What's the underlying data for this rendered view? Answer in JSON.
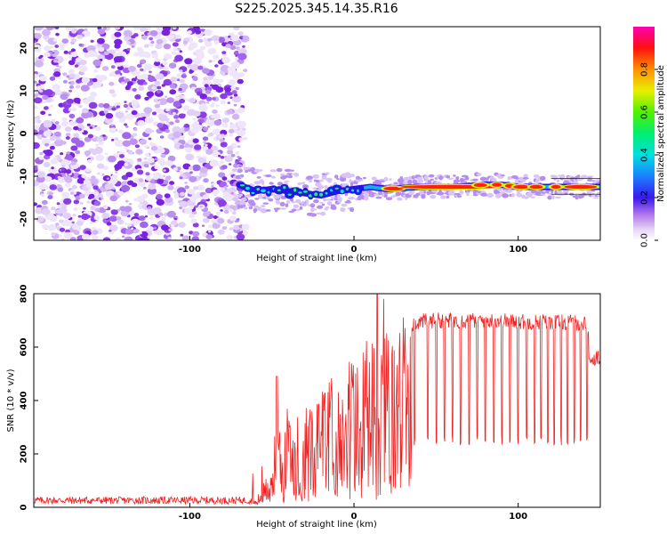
{
  "figure_title": "S225.2025.345.14.35.R16",
  "chart_data": [
    {
      "type": "heatmap",
      "name": "spectrogram",
      "xlabel": "Height of straight line (km)",
      "ylabel": "Frequency (Hz)",
      "xlim": [
        -195,
        150
      ],
      "ylim": [
        -25,
        25
      ],
      "xticks": [
        -100,
        0,
        100
      ],
      "xtick_labels": [
        "-100",
        "0",
        "100"
      ],
      "yticks": [
        -20,
        -10,
        0,
        10,
        20
      ],
      "ytick_labels": [
        "-20",
        "-10",
        "0",
        "10",
        "20"
      ],
      "noise_region_x": [
        -195,
        -68
      ],
      "signal_track": {
        "x": [
          -70,
          -60,
          -50,
          -40,
          -30,
          -20,
          -10,
          0,
          10,
          20,
          40,
          60,
          80,
          90,
          100,
          120,
          150
        ],
        "frequency": [
          -12,
          -13.5,
          -13,
          -13.5,
          -14,
          -14.5,
          -13.5,
          -13,
          -12.5,
          -13,
          -12.5,
          -12.5,
          -12,
          -12,
          -12.5,
          -12.5,
          -12.5
        ]
      },
      "colorbar": {
        "label": "Normalized spectral amplitude",
        "ticks": [
          0.0,
          0.2,
          0.4,
          0.6,
          0.8
        ],
        "tick_labels": [
          "0.0",
          "0.2",
          "0.4",
          "0.6",
          "0.8"
        ],
        "range": [
          0,
          1
        ]
      }
    },
    {
      "type": "line",
      "name": "snr",
      "color": "#ee2222",
      "xlabel": "Height of straight line (km)",
      "ylabel": "SNR (10 * v/v)",
      "xlim": [
        -195,
        150
      ],
      "ylim": [
        0,
        800
      ],
      "xticks": [
        -100,
        0,
        100
      ],
      "xtick_labels": [
        "-100",
        "0",
        "100"
      ],
      "yticks": [
        0,
        200,
        400,
        600,
        800
      ],
      "ytick_labels": [
        "0",
        "200",
        "400",
        "600",
        "800"
      ],
      "envelope": {
        "x": [
          -195,
          -60,
          -55,
          -50,
          -45,
          -40,
          -35,
          -30,
          -25,
          -20,
          -15,
          -10,
          -5,
          0,
          5,
          10,
          15,
          20,
          25,
          30,
          40,
          50,
          60,
          80,
          100,
          120,
          140,
          150
        ],
        "y": [
          20,
          25,
          90,
          180,
          260,
          310,
          330,
          360,
          380,
          420,
          460,
          500,
          540,
          560,
          590,
          620,
          630,
          650,
          670,
          680,
          695,
          700,
          700,
          700,
          695,
          695,
          690,
          575
        ]
      },
      "dips_x": [
        37,
        45,
        50,
        55,
        60,
        65,
        70,
        75,
        80,
        85,
        90,
        95,
        100,
        105,
        110,
        114,
        118,
        122,
        126,
        130,
        134,
        138,
        142,
        146
      ],
      "dip_level": 250
    }
  ]
}
